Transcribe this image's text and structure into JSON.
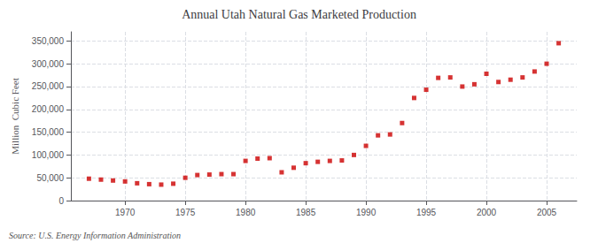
{
  "chart_data": {
    "type": "scatter",
    "title": "Annual Utah Natural Gas Marketed Production",
    "ylabel": "Million  Cubic Feet",
    "annotations": [
      "Source: U.S. Energy Information Administration"
    ],
    "x": [
      1967,
      1968,
      1969,
      1970,
      1971,
      1972,
      1973,
      1974,
      1975,
      1976,
      1977,
      1978,
      1979,
      1980,
      1981,
      1982,
      1983,
      1984,
      1985,
      1986,
      1987,
      1988,
      1989,
      1990,
      1991,
      1992,
      1993,
      1994,
      1995,
      1996,
      1997,
      1998,
      1999,
      2000,
      2001,
      2002,
      2003,
      2004,
      2005,
      2006
    ],
    "values": [
      48000,
      46000,
      44000,
      42000,
      38000,
      36000,
      35000,
      37000,
      50000,
      56000,
      57000,
      58000,
      58000,
      87000,
      92000,
      93000,
      62000,
      72000,
      82000,
      85000,
      87000,
      88000,
      100000,
      120000,
      143000,
      145000,
      170000,
      225000,
      243000,
      269000,
      270000,
      250000,
      255000,
      278000,
      260000,
      265000,
      270000,
      283000,
      300000,
      345000
    ],
    "color": "#cc0000",
    "marker": "square",
    "xlim": [
      1965.5,
      2007.5
    ],
    "xticks": [
      1970,
      1975,
      1980,
      1985,
      1990,
      1995,
      2000,
      2005
    ],
    "ylim": [
      0,
      370000
    ],
    "yticks": [
      0,
      {
        "value": 50000,
        "label": "50,000"
      },
      {
        "value": 100000,
        "label": "100,000"
      },
      {
        "value": 150000,
        "label": "150,000"
      },
      {
        "value": 200000,
        "label": "200,000"
      },
      {
        "value": 250000,
        "label": "250,000"
      },
      {
        "value": 300000,
        "label": "300,000"
      },
      {
        "value": 350000,
        "label": "350,000"
      }
    ],
    "grid": true
  }
}
